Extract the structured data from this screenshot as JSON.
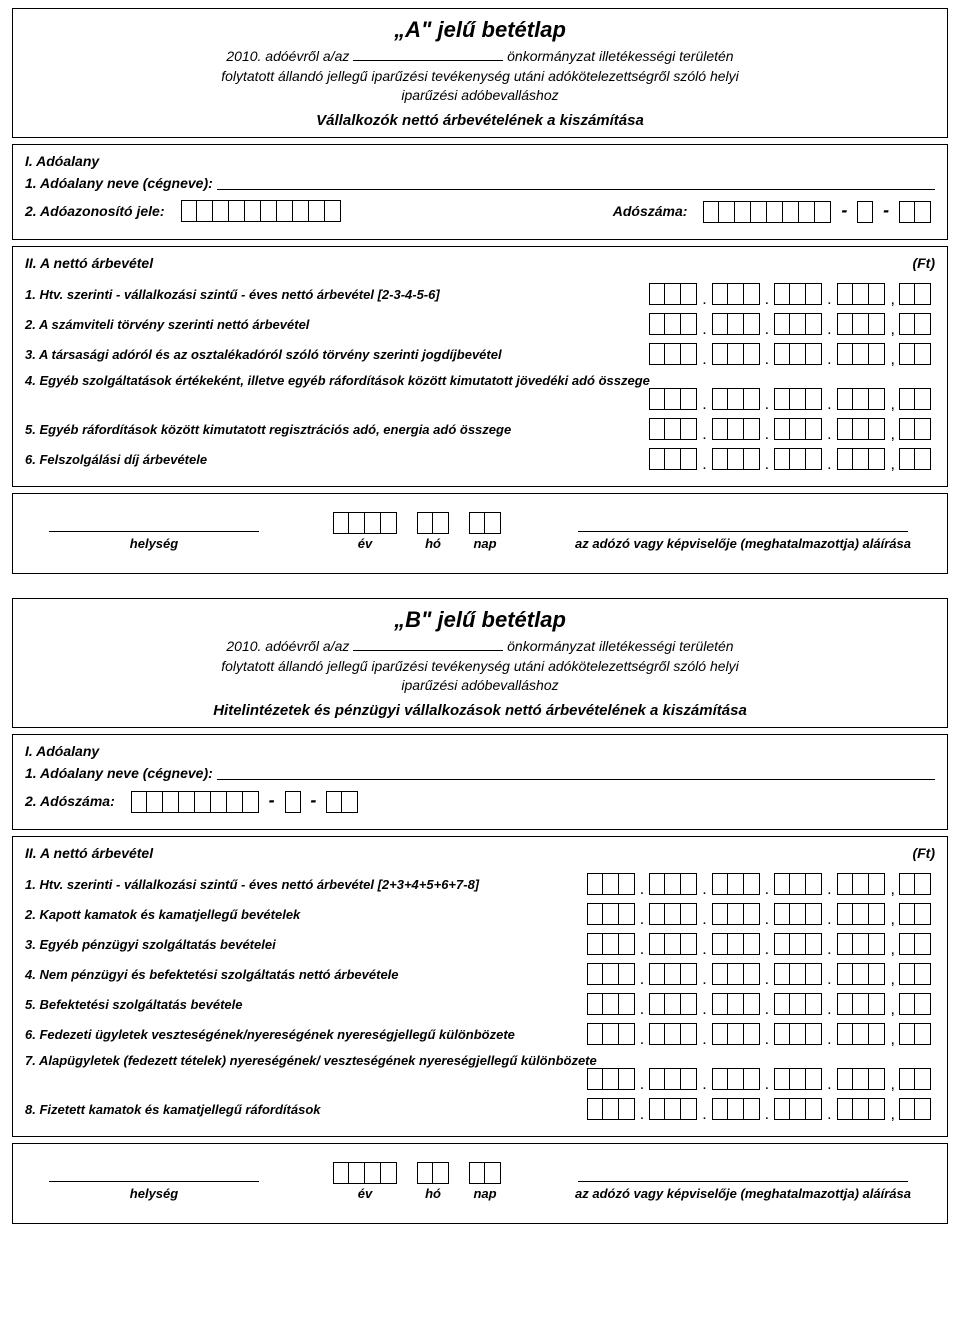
{
  "colors": {
    "text": "#000000",
    "bg": "#ffffff",
    "border": "#000000"
  },
  "typography": {
    "family": "Arial",
    "title_size": 22,
    "label_size": 14,
    "row_size": 13
  },
  "formA": {
    "title": "„A\" jelű betétlap",
    "year_prefix": "2010. adóévről a/az",
    "year_suffix": "önkormányzat illetékességi területén",
    "line2": "folytatott állandó jellegű iparűzési tevékenység utáni adókötelezettségről szóló helyi",
    "line3": "iparűzési adóbevalláshoz",
    "subtitle": "Vállalkozók nettó árbevételének a kiszámítása",
    "section1_title": "I. Adóalany",
    "name_label": "1. Adóalany neve (cégneve):",
    "taxid_label": "2. Adóazonosító jele:",
    "taxno_label": "Adószáma:",
    "section2_title": "II. A nettó árbevétel",
    "unit": "(Ft)",
    "rows": [
      "1. Htv. szerinti - vállalkozási szintű - éves nettó árbevétel [2-3-4-5-6]",
      "2. A számviteli törvény szerinti nettó árbevétel",
      "3. A társasági adóról és az osztalékadóról szóló törvény szerinti jogdíjbevétel",
      "4. Egyéb szolgáltatások értékeként, illetve egyéb ráfordítások között kimutatott jövedéki adó összege",
      "5. Egyéb ráfordítások között kimutatott regisztrációs adó, energia adó összege",
      "6. Felszolgálási díj árbevétele"
    ],
    "numfield": {
      "groups": 4,
      "digits_per_group": 3,
      "decimal_digits": 2
    }
  },
  "formB": {
    "title": "„B\" jelű betétlap",
    "year_prefix": "2010. adóévről a/az",
    "year_suffix": "önkormányzat illetékességi területén",
    "line2": "folytatott állandó jellegű iparűzési tevékenység utáni adókötelezettségről szóló helyi",
    "line3": "iparűzési adóbevalláshoz",
    "subtitle": "Hitelintézetek és pénzügyi vállalkozások nettó árbevételének a kiszámítása",
    "section1_title": "I. Adóalany",
    "name_label": "1. Adóalany neve (cégneve):",
    "taxno_label": "2. Adószáma:",
    "section2_title": "II. A nettó árbevétel",
    "unit": "(Ft)",
    "rows": [
      "1. Htv. szerinti - vállalkozási szintű - éves nettó árbevétel [2+3+4+5+6+7-8]",
      "2. Kapott kamatok és kamatjellegű bevételek",
      "3. Egyéb pénzügyi szolgáltatás bevételei",
      "4. Nem pénzügyi és befektetési szolgáltatás nettó árbevétele",
      "5. Befektetési szolgáltatás bevétele",
      "6. Fedezeti ügyletek veszteségének/nyereségének nyereségjellegű különbözete",
      "7. Alapügyletek (fedezett tételek) nyereségének/ veszteségének nyereségjellegű különbözete",
      "8. Fizetett kamatok és kamatjellegű ráfordítások"
    ],
    "numfield": {
      "groups": 5,
      "digits_per_group": 3,
      "decimal_digits": 2
    }
  },
  "sig": {
    "place_label": "helység",
    "year_label": "év",
    "month_label": "hó",
    "day_label": "nap",
    "signer_label": "az adózó vagy képviselője (meghatalmazottja) aláírása"
  },
  "taxA": {
    "azonosito_boxes": 10,
    "szam_main": 8,
    "szam_mid": 1,
    "szam_end": 2
  },
  "taxB": {
    "szam_main": 8,
    "szam_mid": 1,
    "szam_end": 2
  },
  "date_boxes": {
    "year": 4,
    "month": 2,
    "day": 2
  }
}
